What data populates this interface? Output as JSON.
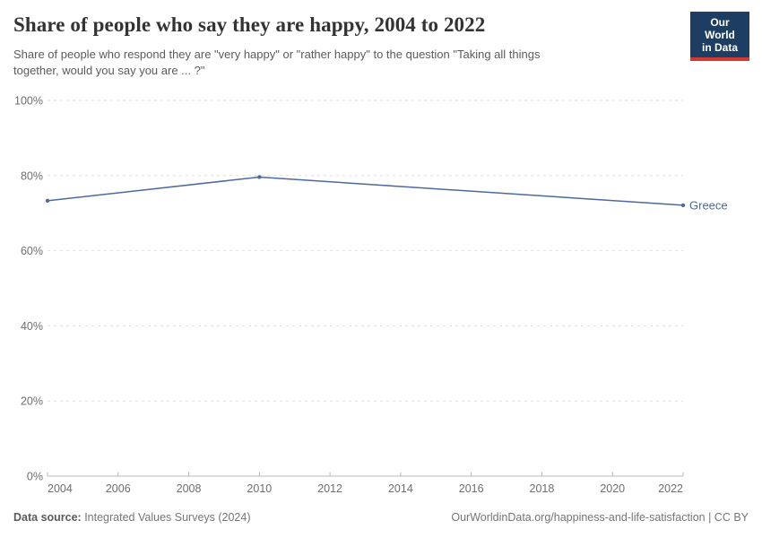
{
  "header": {
    "title": "Share of people who say they are happy, 2004 to 2022",
    "subtitle_line1": "Share of people who respond they are \"very happy\" or \"rather happy\" to the question \"Taking all things",
    "subtitle_line2": "together, would you say you are ... ?\"",
    "logo": {
      "line1": "Our World",
      "line2": "in Data",
      "bg_color": "#1d3d63",
      "stripe_color": "#d13b33"
    }
  },
  "chart_data": {
    "type": "line",
    "title": "Share of people who say they are happy, 2004 to 2022",
    "xlabel": "",
    "ylabel": "",
    "xlim": [
      2004,
      2022
    ],
    "ylim": [
      0,
      100
    ],
    "grid": "horizontal-dashed",
    "legend_position": "end-of-line-label",
    "x_ticks": [
      2004,
      2006,
      2008,
      2010,
      2012,
      2014,
      2016,
      2018,
      2020,
      2022
    ],
    "x_tick_labels": [
      "2004",
      "2006",
      "2008",
      "2010",
      "2012",
      "2014",
      "2016",
      "2018",
      "2020",
      "2022"
    ],
    "y_ticks": [
      0,
      20,
      40,
      60,
      80,
      100
    ],
    "y_tick_labels": [
      "0%",
      "20%",
      "40%",
      "60%",
      "80%",
      "100%"
    ],
    "series": [
      {
        "name": "Greece",
        "end_label": "Greece",
        "color": "#4c6a9c",
        "x": [
          2004,
          2010,
          2022
        ],
        "y": [
          73.3,
          79.6,
          72.1
        ]
      }
    ]
  },
  "footer": {
    "datasource_label": "Data source:",
    "datasource_value": " Integrated Values Surveys (2024)",
    "url_text": "OurWorldinData.org/happiness-and-life-satisfaction | CC BY"
  },
  "colors": {
    "series_blue": "#4c6a9c",
    "title_text": "#333333",
    "subtitle_text": "#5b5b5b",
    "axis_text": "#6e6e6e",
    "gridline": "#dedede",
    "axis_line": "#b9b9b9"
  }
}
